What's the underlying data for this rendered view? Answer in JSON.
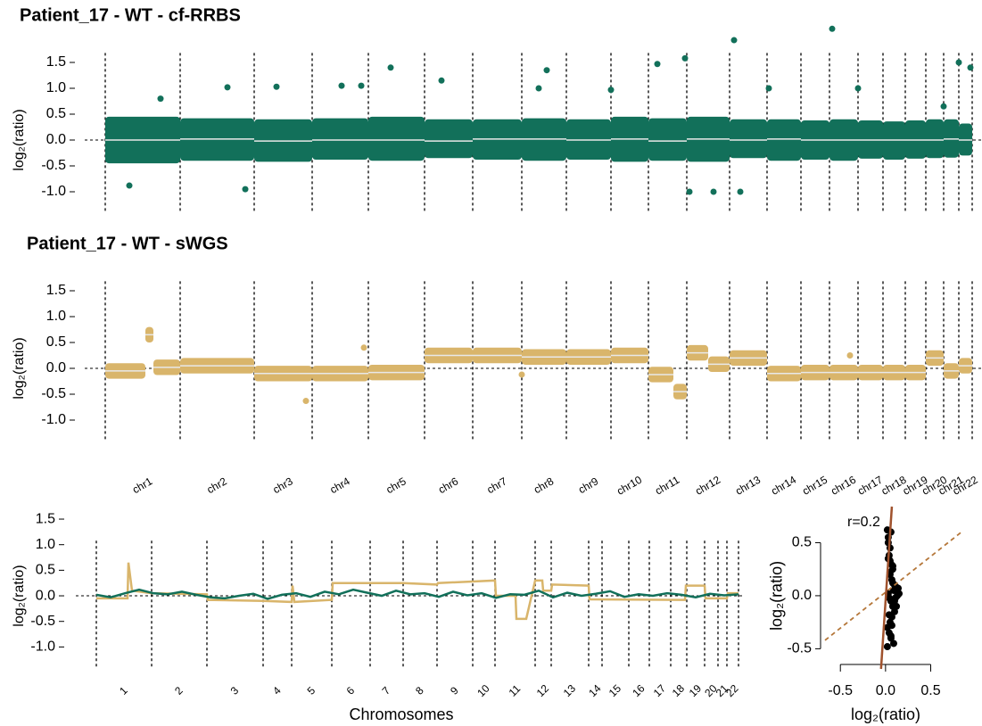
{
  "chart_data": [
    {
      "type": "scatter",
      "title": "Patient_17 - WT - cf-RRBS",
      "color": "#12705a",
      "y_label": "log₂(ratio)",
      "boundaries": [
        0,
        84,
        167,
        232,
        295,
        358,
        412,
        467,
        517,
        567,
        609,
        652,
        700,
        742,
        780,
        812,
        844,
        872,
        897,
        920,
        940,
        957,
        972
      ],
      "xlim": [
        0,
        972
      ],
      "ylim": [
        -1.4,
        2.2
      ],
      "yticks": [
        {
          "value": -1,
          "label": "-1.0"
        },
        -0.5,
        {
          "value": 0,
          "label": "0.0"
        },
        0.5,
        {
          "value": 1,
          "label": "1.0"
        },
        1.5
      ],
      "segment_start": [
        0,
        84,
        167,
        232,
        295,
        358,
        412,
        467,
        517,
        567,
        609,
        652,
        700,
        742,
        780,
        812,
        844,
        872,
        897,
        920,
        940,
        957
      ],
      "segment_end": [
        84,
        167,
        232,
        295,
        358,
        412,
        467,
        517,
        567,
        609,
        652,
        700,
        742,
        780,
        812,
        844,
        872,
        897,
        920,
        940,
        957,
        972
      ],
      "segment_values": [
        0,
        0.02,
        -0.02,
        0,
        0,
        -0.02,
        0.02,
        0.02,
        0,
        0.02,
        -0.02,
        0.02,
        0,
        0.02,
        0,
        0,
        0,
        0,
        0,
        0,
        0.02,
        0
      ],
      "band_low": [
        -0.45,
        -0.4,
        -0.42,
        -0.38,
        -0.4,
        -0.35,
        -0.38,
        -0.4,
        -0.38,
        -0.42,
        -0.4,
        -0.42,
        -0.35,
        -0.4,
        -0.38,
        -0.4,
        -0.36,
        -0.38,
        -0.36,
        -0.35,
        -0.34,
        -0.3
      ],
      "band_high": [
        0.45,
        0.42,
        0.4,
        0.42,
        0.45,
        0.4,
        0.4,
        0.42,
        0.4,
        0.45,
        0.42,
        0.45,
        0.4,
        0.4,
        0.38,
        0.4,
        0.38,
        0.36,
        0.38,
        0.4,
        0.4,
        0.32
      ],
      "x": [
        705,
        815,
        320,
        650,
        619,
        957,
        970,
        655,
        682,
        712,
        157,
        27,
        495,
        486,
        137,
        265,
        287,
        567,
        844,
        744,
        62,
        192,
        377,
        940
      ],
      "values": [
        1.93,
        2.15,
        1.4,
        1.58,
        1.47,
        1.5,
        1.4,
        -1.0,
        -1.0,
        -1.0,
        -0.95,
        -0.88,
        1.35,
        1.0,
        1.02,
        1.05,
        1.05,
        0.97,
        1.0,
        1.0,
        0.8,
        1.03,
        1.15,
        0.65
      ]
    },
    {
      "type": "scatter",
      "title": "Patient_17 - WT - sWGS",
      "color": "#d9b56b",
      "y_label": "log₂(ratio)",
      "chromosomes": [
        "chr1",
        "chr2",
        "chr3",
        "chr4",
        "chr5",
        "chr6",
        "chr7",
        "chr8",
        "chr9",
        "chr10",
        "chr11",
        "chr12",
        "chr13",
        "chr14",
        "chr15",
        "chr16",
        "chr17",
        "chr18",
        "chr19",
        "chr20",
        "chr21",
        "chr22"
      ],
      "boundaries": [
        0,
        84,
        167,
        232,
        295,
        358,
        412,
        467,
        517,
        567,
        609,
        652,
        700,
        742,
        780,
        812,
        844,
        872,
        897,
        920,
        940,
        957,
        972
      ],
      "xlim": [
        0,
        972
      ],
      "ylim": [
        -1.4,
        2.2
      ],
      "yticks": [
        {
          "value": -1,
          "label": "-1.0"
        },
        -0.5,
        {
          "value": 0,
          "label": "0.0"
        },
        0.5,
        {
          "value": 1,
          "label": "1.0"
        },
        1.5
      ],
      "segment_start": [
        0,
        45,
        54,
        84,
        167,
        232,
        295,
        358,
        412,
        467,
        517,
        567,
        609,
        637,
        652,
        676,
        700,
        742,
        780,
        812,
        844,
        872,
        897,
        920,
        940,
        957
      ],
      "segment_end": [
        45,
        54,
        84,
        167,
        232,
        295,
        358,
        412,
        467,
        517,
        567,
        609,
        637,
        652,
        676,
        700,
        742,
        780,
        812,
        844,
        872,
        897,
        920,
        940,
        957,
        972
      ],
      "segment_values": [
        -0.05,
        0.65,
        0.02,
        0.05,
        -0.1,
        -0.1,
        -0.08,
        0.25,
        0.25,
        0.22,
        0.22,
        0.25,
        -0.12,
        -0.45,
        0.3,
        0.08,
        0.2,
        -0.1,
        -0.08,
        -0.08,
        -0.08,
        -0.08,
        -0.08,
        0.2,
        -0.05,
        0.05
      ],
      "band_low": [
        -0.2,
        0.5,
        -0.13,
        -0.1,
        -0.25,
        -0.25,
        -0.23,
        0.1,
        0.1,
        0.07,
        0.07,
        0.1,
        -0.27,
        -0.6,
        0.15,
        -0.07,
        0.05,
        -0.25,
        -0.23,
        -0.23,
        -0.23,
        -0.23,
        -0.23,
        0.05,
        -0.2,
        -0.1
      ],
      "band_high": [
        0.1,
        0.8,
        0.17,
        0.2,
        0.05,
        0.05,
        0.07,
        0.4,
        0.4,
        0.37,
        0.37,
        0.4,
        0.03,
        -0.3,
        0.45,
        0.23,
        0.35,
        0.05,
        0.07,
        0.07,
        0.07,
        0.07,
        0.07,
        0.35,
        0.1,
        0.2
      ],
      "x": [
        225,
        290,
        835,
        467
      ],
      "values": [
        -0.63,
        0.4,
        0.25,
        -0.12
      ]
    },
    {
      "type": "line",
      "y_label": "log₂(ratio)",
      "x_label": "Chromosomes",
      "chromosomes": [
        "1",
        "2",
        "3",
        "4",
        "5",
        "6",
        "7",
        "8",
        "9",
        "10",
        "11",
        "12",
        "13",
        "14",
        "15",
        "16",
        "17",
        "18",
        "19",
        "20",
        "21",
        "22"
      ],
      "boundaries": [
        0,
        62,
        124,
        187,
        219,
        264,
        307,
        344,
        382,
        422,
        447,
        492,
        510,
        552,
        567,
        597,
        620,
        644,
        662,
        682,
        697,
        707,
        720
      ],
      "xlim": [
        0,
        720
      ],
      "ylim": [
        -1.4,
        1.6
      ],
      "yticks": [
        {
          "value": -1,
          "label": "-1.0"
        },
        -0.5,
        {
          "value": 0,
          "label": "0.0"
        },
        0.5,
        {
          "value": 1,
          "label": "1.0"
        },
        1.5
      ],
      "series": [
        {
          "color": "#d9b56b",
          "x": [
            0,
            35,
            36,
            40,
            62,
            124,
            125,
            187,
            219,
            220,
            222,
            264,
            265,
            307,
            344,
            382,
            383,
            422,
            447,
            448,
            470,
            471,
            482,
            492,
            500,
            501,
            510,
            511,
            552,
            553,
            660,
            661,
            682,
            683,
            707,
            708,
            720
          ],
          "values": [
            -0.05,
            -0.05,
            0.65,
            0.1,
            0.05,
            0.03,
            -0.08,
            -0.1,
            -0.12,
            0.2,
            -0.12,
            -0.08,
            0.25,
            0.25,
            0.25,
            0.22,
            0.25,
            0.28,
            0.3,
            0,
            0,
            -0.45,
            -0.45,
            0.3,
            0.3,
            0.1,
            0.1,
            0.22,
            0.2,
            -0.07,
            -0.08,
            0.2,
            0.2,
            -0.05,
            -0.05,
            0.05,
            0.05
          ]
        },
        {
          "color": "#12705a",
          "x": [
            0,
            16,
            32,
            48,
            64,
            80,
            96,
            112,
            128,
            144,
            160,
            176,
            192,
            208,
            224,
            240,
            256,
            272,
            288,
            304,
            320,
            336,
            352,
            368,
            384,
            400,
            416,
            432,
            448,
            464,
            480,
            496,
            512,
            528,
            544,
            560,
            576,
            592,
            608,
            624,
            640,
            656,
            672,
            688,
            704,
            720
          ],
          "values": [
            0.02,
            -0.03,
            0.05,
            0.12,
            0.05,
            0.03,
            0.08,
            0.02,
            -0.03,
            -0.05,
            0.0,
            0.04,
            -0.06,
            0.02,
            0.05,
            -0.02,
            0.08,
            0.03,
            0.12,
            0.06,
            0.0,
            0.1,
            0.03,
            0.05,
            -0.02,
            0.08,
            0.01,
            0.05,
            -0.04,
            0.03,
            0.02,
            0.1,
            -0.03,
            0.06,
            0.0,
            0.04,
            0.09,
            -0.02,
            0.03,
            0.0,
            0.05,
            0.02,
            -0.03,
            0.04,
            0.01,
            0.03
          ]
        }
      ]
    },
    {
      "type": "scatter",
      "x_label": "log₂(ratio)",
      "y_label": "log₂(ratio)",
      "annotation": "r=0.2",
      "x_label_color": "#12705a",
      "y_label_color": "#d9b56b",
      "color": "#000000",
      "xlim": [
        -0.67,
        0.9
      ],
      "ylim": [
        -0.69,
        0.84
      ],
      "xticks": [
        -0.5,
        {
          "value": 0,
          "label": "0.0"
        },
        0.5
      ],
      "yticks": [
        -0.5,
        {
          "value": 0,
          "label": "0.0"
        },
        0.5
      ],
      "x": [
        0.02,
        0.03,
        0.05,
        0.04,
        0.06,
        0.08,
        0.05,
        0.07,
        0.1,
        0.12,
        0.09,
        0.03,
        0.04,
        0.06,
        0.08,
        0.11,
        0.13,
        0.15,
        0.1,
        0.07,
        0.05,
        0.02,
        0.04,
        0.06,
        0.09,
        0.12,
        0.14,
        0.08,
        0.05,
        0.03,
        0.06,
        0.1,
        0.07,
        0.04,
        0.02,
        0.05,
        0.08,
        0.11,
        0.06,
        0.03
      ],
      "values": [
        0.62,
        0.55,
        0.45,
        0.38,
        0.3,
        0.25,
        0.2,
        0.15,
        0.1,
        0.08,
        0.05,
        0.02,
        -0.02,
        -0.05,
        -0.1,
        0.05,
        0.0,
        0.02,
        -0.15,
        -0.2,
        -0.25,
        -0.3,
        -0.35,
        -0.4,
        -0.45,
        -0.1,
        0.07,
        0.12,
        0.33,
        0.5,
        0.6,
        -0.05,
        -0.28,
        -0.18,
        -0.48,
        0.22,
        0.28,
        -0.02,
        -0.38,
        0.35
      ],
      "fit_line": {
        "color": "#a0522d",
        "x": [
          -0.05,
          0.07
        ],
        "values": [
          -0.69,
          0.84
        ]
      },
      "reference_line": {
        "color": "#b5773a",
        "x": [
          -0.67,
          0.84
        ],
        "values": [
          -0.42,
          0.6
        ]
      }
    }
  ]
}
